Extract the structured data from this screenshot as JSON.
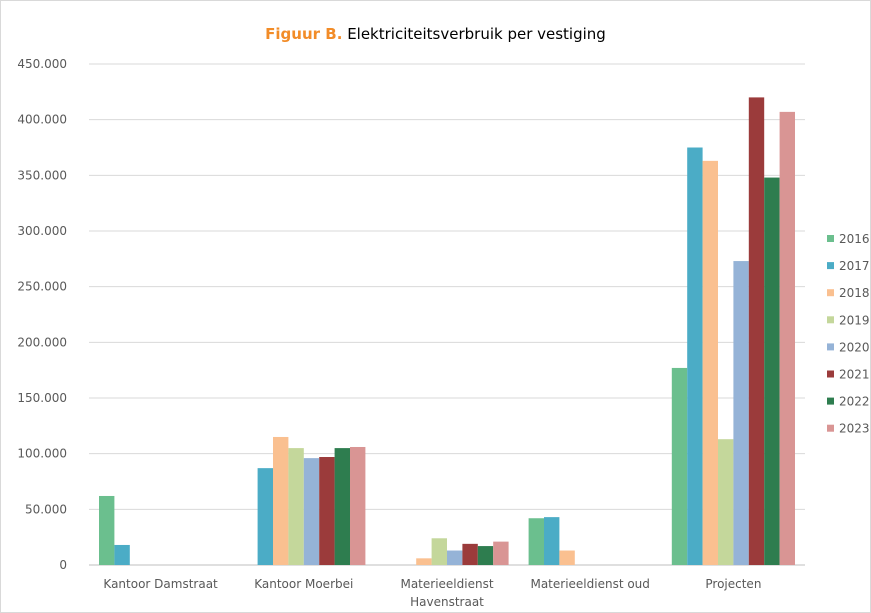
{
  "chart_data": {
    "type": "bar",
    "title_prefix": "Figuur B.",
    "title": "Elektriciteitsverbruik per vestiging",
    "categories": [
      [
        "Kantoor Damstraat"
      ],
      [
        "Kantoor Moerbei"
      ],
      [
        "Materieeldienst",
        "Havenstraat"
      ],
      [
        "Materieeldienst oud"
      ],
      [
        "Projecten"
      ]
    ],
    "ylim": [
      0,
      450000
    ],
    "yticks": [
      0,
      50000,
      100000,
      150000,
      200000,
      250000,
      300000,
      350000,
      400000,
      450000
    ],
    "ytick_labels": [
      "0",
      "50.000",
      "100.000",
      "150.000",
      "200.000",
      "250.000",
      "300.000",
      "350.000",
      "400.000",
      "450.000"
    ],
    "grid": true,
    "legend_position": "right",
    "series": [
      {
        "name": "2016",
        "color": "#6bbf8e",
        "values": [
          62000,
          0,
          0,
          42000,
          177000
        ]
      },
      {
        "name": "2017",
        "color": "#4bacc6",
        "values": [
          18000,
          87000,
          0,
          43000,
          375000
        ]
      },
      {
        "name": "2018",
        "color": "#fac090",
        "values": [
          0,
          115000,
          6000,
          13000,
          363000
        ]
      },
      {
        "name": "2019",
        "color": "#c4d79b",
        "values": [
          0,
          105000,
          24000,
          0,
          113000
        ]
      },
      {
        "name": "2020",
        "color": "#95b3d7",
        "values": [
          0,
          96000,
          13000,
          0,
          273000
        ]
      },
      {
        "name": "2021",
        "color": "#9b3b3b",
        "values": [
          0,
          97000,
          19000,
          0,
          420000
        ]
      },
      {
        "name": "2022",
        "color": "#2e7d4f",
        "values": [
          0,
          105000,
          17000,
          0,
          348000
        ]
      },
      {
        "name": "2023",
        "color": "#d99594",
        "values": [
          0,
          106000,
          21000,
          0,
          407000
        ]
      }
    ]
  }
}
